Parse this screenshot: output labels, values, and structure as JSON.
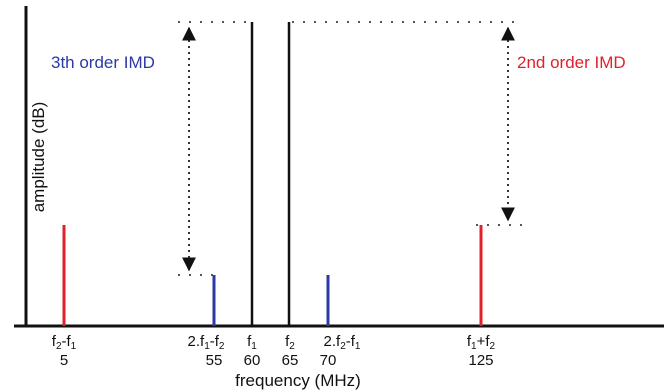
{
  "diagram": {
    "y_axis_label": "amplitude (dB)",
    "x_axis_label": "frequency (MHz)",
    "imd3_label": "3th order IMD",
    "imd2_label": "2nd order IMD",
    "colors": {
      "fundamental": "#111111",
      "imd2": "#e0212b",
      "imd3": "#2b3aa6"
    },
    "bins": [
      {
        "id": "f2-f1",
        "name": [
          "f",
          "2",
          "-f",
          "1"
        ],
        "freq": "5",
        "type": "imd2"
      },
      {
        "id": "2f1-f2",
        "name": [
          "2.f",
          "1",
          "-f",
          "2"
        ],
        "freq": "55",
        "type": "imd3"
      },
      {
        "id": "f1",
        "name": [
          "f",
          "1"
        ],
        "freq": "60",
        "type": "fundamental"
      },
      {
        "id": "f2",
        "name": [
          "f",
          "2"
        ],
        "freq": "65",
        "type": "fundamental"
      },
      {
        "id": "2f2-f1",
        "name": [
          "2.f",
          "2",
          "-f",
          "1"
        ],
        "freq": "70",
        "type": "imd3"
      },
      {
        "id": "f1+f2",
        "name": [
          "f",
          "1",
          "+f",
          "2"
        ],
        "freq": "125",
        "type": "imd2"
      }
    ]
  }
}
